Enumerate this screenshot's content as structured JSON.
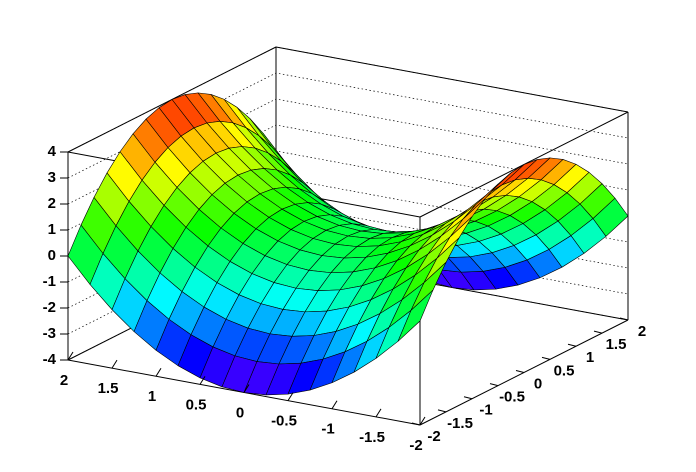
{
  "chart_data": {
    "type": "surface",
    "x": [
      -2,
      -1.75,
      -1.5,
      -1.25,
      -1,
      -0.75,
      -0.5,
      -0.25,
      0,
      0.25,
      0.5,
      0.75,
      1,
      1.25,
      1.5,
      1.75,
      2
    ],
    "y": [
      -2,
      -1.75,
      -1.5,
      -1.25,
      -1,
      -0.75,
      -0.5,
      -0.25,
      0,
      0.25,
      0.5,
      0.75,
      1,
      1.25,
      1.5,
      1.75,
      2
    ],
    "z": [
      [
        0,
        -0.9375,
        -1.75,
        -2.4375,
        -3,
        -3.4375,
        -3.75,
        -3.9375,
        -4,
        -3.9375,
        -3.75,
        -3.4375,
        -3,
        -2.4375,
        -1.75,
        -0.9375,
        0
      ],
      [
        0.9375,
        0,
        -0.8125,
        -1.5,
        -2.0625,
        -2.5,
        -2.8125,
        -3,
        -3.0625,
        -3,
        -2.8125,
        -2.5,
        -2.0625,
        -1.5,
        -0.8125,
        0,
        0.9375
      ],
      [
        1.75,
        0.8125,
        0,
        -0.6875,
        -1.25,
        -1.6875,
        -2,
        -2.1875,
        -2.25,
        -2.1875,
        -2,
        -1.6875,
        -1.25,
        -0.6875,
        0,
        0.8125,
        1.75
      ],
      [
        2.4375,
        1.5,
        0.6875,
        0,
        -0.5625,
        -1,
        -1.3125,
        -1.5,
        -1.5625,
        -1.5,
        -1.3125,
        -1,
        -0.5625,
        0,
        0.6875,
        1.5,
        2.4375
      ],
      [
        3,
        2.0625,
        1.25,
        0.5625,
        0,
        -0.4375,
        -0.75,
        -0.9375,
        -1,
        -0.9375,
        -0.75,
        -0.4375,
        0,
        0.5625,
        1.25,
        2.0625,
        3
      ],
      [
        3.4375,
        2.5,
        1.6875,
        1,
        0.4375,
        0,
        -0.3125,
        -0.5,
        -0.5625,
        -0.5,
        -0.3125,
        0,
        0.4375,
        1,
        1.6875,
        2.5,
        3.4375
      ],
      [
        3.75,
        2.8125,
        2,
        1.3125,
        0.75,
        0.3125,
        0,
        -0.1875,
        -0.25,
        -0.1875,
        0,
        0.3125,
        0.75,
        1.3125,
        2,
        2.8125,
        3.75
      ],
      [
        3.9375,
        3,
        2.1875,
        1.5,
        0.9375,
        0.5,
        0.1875,
        0,
        -0.0625,
        0,
        0.1875,
        0.5,
        0.9375,
        1.5,
        2.1875,
        3,
        3.9375
      ],
      [
        4,
        3.0625,
        2.25,
        1.5625,
        1,
        0.5625,
        0.25,
        0.0625,
        0,
        0.0625,
        0.25,
        0.5625,
        1,
        1.5625,
        2.25,
        3.0625,
        4
      ],
      [
        3.9375,
        3,
        2.1875,
        1.5,
        0.9375,
        0.5,
        0.1875,
        0,
        -0.0625,
        0,
        0.1875,
        0.5,
        0.9375,
        1.5,
        2.1875,
        3,
        3.9375
      ],
      [
        3.75,
        2.8125,
        2,
        1.3125,
        0.75,
        0.3125,
        0,
        -0.1875,
        -0.25,
        -0.1875,
        0,
        0.3125,
        0.75,
        1.3125,
        2,
        2.8125,
        3.75
      ],
      [
        3.4375,
        2.5,
        1.6875,
        1,
        0.4375,
        0,
        -0.3125,
        -0.5,
        -0.5625,
        -0.5,
        -0.3125,
        0,
        0.4375,
        1,
        1.6875,
        2.5,
        3.4375
      ],
      [
        3,
        2.0625,
        1.25,
        0.5625,
        0,
        -0.4375,
        -0.75,
        -0.9375,
        -1,
        -0.9375,
        -0.75,
        -0.4375,
        0,
        0.5625,
        1.25,
        2.0625,
        3
      ],
      [
        2.4375,
        1.5,
        0.6875,
        0,
        -0.5625,
        -1,
        -1.3125,
        -1.5,
        -1.5625,
        -1.5,
        -1.3125,
        -1,
        -0.5625,
        0,
        0.6875,
        1.5,
        2.4375
      ],
      [
        1.75,
        0.8125,
        0,
        -0.6875,
        -1.25,
        -1.6875,
        -2,
        -2.1875,
        -2.25,
        -2.1875,
        -2,
        -1.6875,
        -1.25,
        -0.6875,
        0,
        0.8125,
        1.75
      ],
      [
        0.9375,
        0,
        -0.8125,
        -1.5,
        -2.0625,
        -2.5,
        -2.8125,
        -3,
        -3.0625,
        -3,
        -2.8125,
        -2.5,
        -2.0625,
        -1.5,
        -0.8125,
        0,
        0.9375
      ],
      [
        0,
        -0.9375,
        -1.75,
        -2.4375,
        -3,
        -3.4375,
        -3.75,
        -3.9375,
        -4,
        -3.9375,
        -3.75,
        -3.4375,
        -3,
        -2.4375,
        -1.75,
        -0.9375,
        0
      ]
    ],
    "xlim": [
      -2,
      2
    ],
    "ylim": [
      -2,
      2
    ],
    "zlim": [
      -4,
      4
    ],
    "xticks": [
      2,
      1.5,
      1,
      0.5,
      0,
      -0.5,
      -1,
      -1.5,
      -2
    ],
    "yticks": [
      -2,
      -1.5,
      -1,
      -0.5,
      0,
      0.5,
      1,
      1.5,
      2
    ],
    "zticks": [
      -4,
      -3,
      -2,
      -1,
      0,
      1,
      2,
      3,
      4
    ],
    "grid": true
  }
}
